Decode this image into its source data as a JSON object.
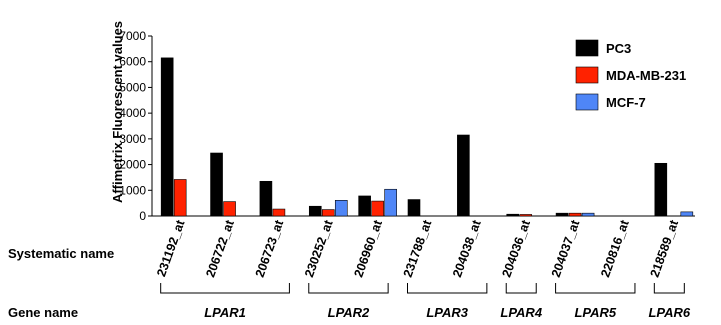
{
  "chart_data": {
    "type": "bar",
    "ylabel": "Affimetrix Fluorescent values",
    "ylim": [
      0,
      7000
    ],
    "yticks": [
      "7000",
      "6000",
      "5000",
      "4000",
      "3000",
      "2000",
      "1000",
      "0"
    ],
    "ytick_values": [
      7000,
      6000,
      5000,
      4000,
      3000,
      2000,
      1000,
      0
    ],
    "categories": [
      "231192_at",
      "206722_at",
      "206723_at",
      "230252_at",
      "206960_at",
      "231788_at",
      "204038_at",
      "204036_at",
      "204037_at",
      "220816_at",
      "218589_at"
    ],
    "series": [
      {
        "name": "PC3",
        "color": "#000000",
        "values": [
          6150,
          2450,
          1350,
          380,
          780,
          640,
          3150,
          70,
          110,
          0,
          2050
        ]
      },
      {
        "name": "MDA-MB-231",
        "color": "#ff2200",
        "values": [
          1420,
          560,
          270,
          250,
          580,
          0,
          0,
          60,
          110,
          0,
          0
        ]
      },
      {
        "name": "MCF-7",
        "color": "#4f86f7",
        "values": [
          0,
          0,
          0,
          610,
          1040,
          0,
          0,
          0,
          110,
          0,
          160
        ]
      }
    ],
    "legend_position": "top-right",
    "row_labels": {
      "systematic": "Systematic name",
      "gene": "Gene name"
    },
    "gene_groups": [
      {
        "name": "LPAR1",
        "first": 0,
        "last": 2
      },
      {
        "name": "LPAR2",
        "first": 3,
        "last": 4
      },
      {
        "name": "LPAR3",
        "first": 5,
        "last": 6
      },
      {
        "name": "LPAR4",
        "first": 7,
        "last": 7
      },
      {
        "name": "LPAR5",
        "first": 8,
        "last": 9
      },
      {
        "name": "LPAR6",
        "first": 10,
        "last": 10
      }
    ]
  }
}
